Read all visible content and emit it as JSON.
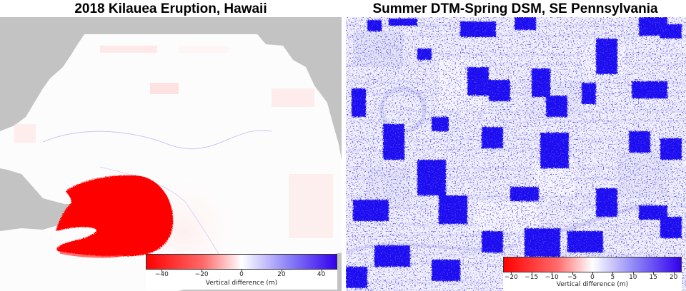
{
  "panels": [
    {
      "title": "2018 Kilauea Eruption, Hawaii",
      "colorbar": {
        "ticks": [
          "−40",
          "−20",
          "0",
          "20",
          "40"
        ],
        "label": "Vertical difference (m)",
        "range": [
          -48,
          48
        ],
        "colors": [
          "#ff0000",
          "#ffffff",
          "#3300ee"
        ]
      }
    },
    {
      "title": "Summer DTM-Spring DSM, SE Pennsylvania",
      "colorbar": {
        "ticks": [
          "−20",
          "−15",
          "−10",
          "−5",
          "0",
          "5",
          "10",
          "15",
          "20"
        ],
        "label": "Vertical difference (m)",
        "range": [
          -22,
          22
        ],
        "colors": [
          "#ff0000",
          "#ffffff",
          "#3300ee"
        ]
      }
    }
  ],
  "colors": {
    "nodata": "#c3c3c3",
    "background": "#ffffff",
    "subsidence": "#ff0000",
    "uplift": "#1a10f0"
  }
}
